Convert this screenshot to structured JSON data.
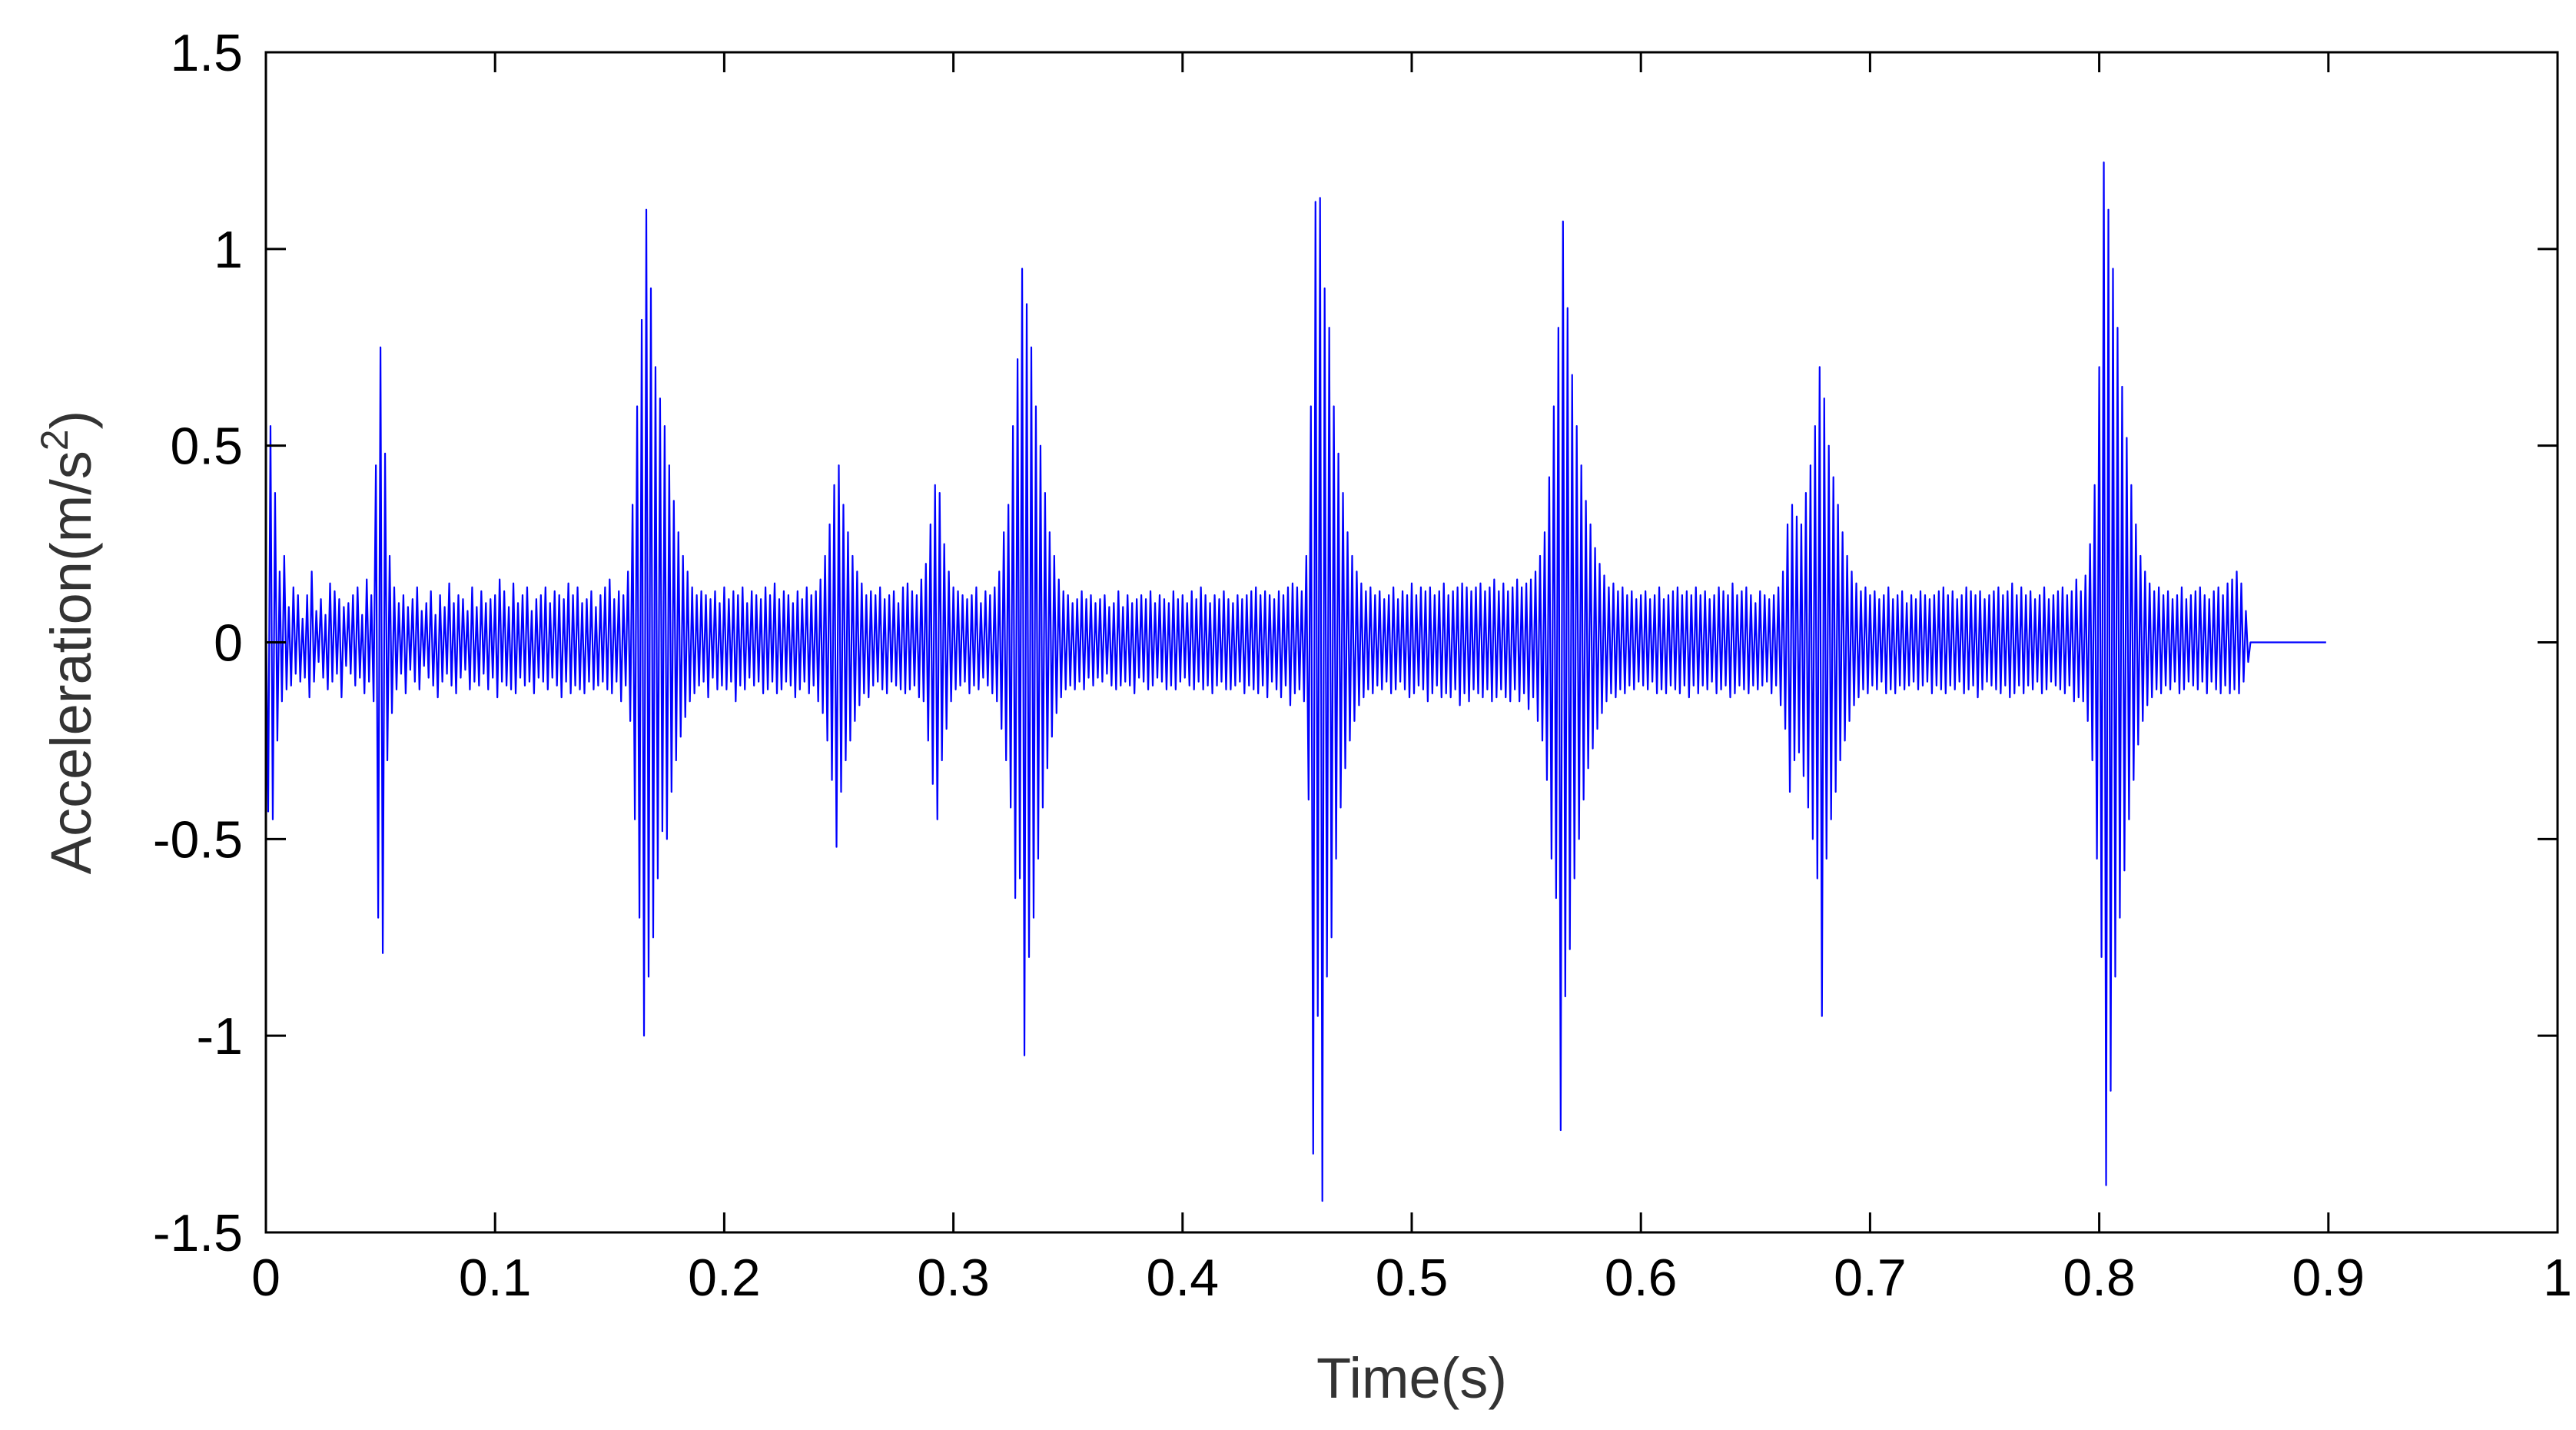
{
  "colors": {
    "series_line": "#0000ff",
    "axes": "#000000",
    "axis_title": "#333333",
    "background": "#ffffff"
  },
  "chart_data": {
    "type": "line",
    "xlabel": "Time(s)",
    "ylabel": {
      "base": "Acceleration(m/s",
      "superscript": "2",
      "close": ")"
    },
    "xlim": [
      0,
      1
    ],
    "ylim": [
      -1.5,
      1.5
    ],
    "xticks": [
      "0",
      "0.1",
      "0.2",
      "0.3",
      "0.4",
      "0.5",
      "0.6",
      "0.7",
      "0.8",
      "0.9",
      "1"
    ],
    "yticks": [
      "-1.5",
      "-1",
      "-0.5",
      "0",
      "0.5",
      "1",
      "1.5"
    ],
    "grid": false,
    "legend": "none",
    "series": [
      {
        "sample_interval_s": 0.001,
        "start_time_s": 0.0,
        "values": [
          0.1,
          -0.43,
          0.55,
          -0.45,
          0.38,
          -0.25,
          0.18,
          -0.15,
          0.22,
          -0.12,
          0.09,
          -0.11,
          0.14,
          -0.08,
          0.12,
          -0.1,
          0.06,
          -0.09,
          0.12,
          -0.14,
          0.18,
          -0.1,
          0.08,
          -0.05,
          0.11,
          -0.09,
          0.07,
          -0.12,
          0.15,
          -0.1,
          0.13,
          -0.08,
          0.11,
          -0.14,
          0.09,
          -0.06,
          0.1,
          -0.08,
          0.12,
          -0.11,
          0.14,
          -0.09,
          0.07,
          -0.13,
          0.16,
          -0.1,
          0.12,
          -0.15,
          0.45,
          -0.7,
          0.75,
          -0.79,
          0.48,
          -0.3,
          0.22,
          -0.18,
          0.14,
          -0.12,
          0.1,
          -0.08,
          0.12,
          -0.13,
          0.09,
          -0.07,
          0.11,
          -0.1,
          0.14,
          -0.12,
          0.08,
          -0.06,
          0.1,
          -0.09,
          0.13,
          -0.11,
          0.07,
          -0.14,
          0.12,
          -0.1,
          0.09,
          -0.08,
          0.15,
          -0.11,
          0.1,
          -0.13,
          0.12,
          -0.09,
          0.11,
          -0.07,
          0.08,
          -0.12,
          0.14,
          -0.1,
          0.09,
          -0.11,
          0.13,
          -0.08,
          0.1,
          -0.12,
          0.11,
          -0.09,
          0.12,
          -0.14,
          0.16,
          -0.1,
          0.13,
          -0.11,
          0.09,
          -0.12,
          0.15,
          -0.13,
          0.1,
          -0.09,
          0.12,
          -0.11,
          0.14,
          -0.1,
          0.08,
          -0.13,
          0.11,
          -0.09,
          0.12,
          -0.1,
          0.14,
          -0.12,
          0.1,
          -0.09,
          0.13,
          -0.11,
          0.12,
          -0.14,
          0.11,
          -0.1,
          0.15,
          -0.13,
          0.12,
          -0.11,
          0.14,
          -0.12,
          0.1,
          -0.13,
          0.11,
          -0.1,
          0.13,
          -0.12,
          0.09,
          -0.11,
          0.12,
          -0.1,
          0.14,
          -0.12,
          0.16,
          -0.13,
          0.11,
          -0.1,
          0.13,
          -0.15,
          0.12,
          -0.11,
          0.18,
          -0.2,
          0.35,
          -0.45,
          0.6,
          -0.7,
          0.82,
          -1.0,
          1.1,
          -0.85,
          0.9,
          -0.75,
          0.7,
          -0.6,
          0.62,
          -0.48,
          0.55,
          -0.5,
          0.45,
          -0.38,
          0.36,
          -0.3,
          0.28,
          -0.24,
          0.22,
          -0.19,
          0.18,
          -0.15,
          0.14,
          -0.13,
          0.12,
          -0.11,
          0.13,
          -0.1,
          0.12,
          -0.14,
          0.11,
          -0.09,
          0.13,
          -0.12,
          0.1,
          -0.11,
          0.14,
          -0.12,
          0.11,
          -0.1,
          0.13,
          -0.15,
          0.12,
          -0.11,
          0.14,
          -0.12,
          0.1,
          -0.09,
          0.13,
          -0.11,
          0.12,
          -0.1,
          0.11,
          -0.13,
          0.14,
          -0.12,
          0.12,
          -0.1,
          0.15,
          -0.13,
          0.11,
          -0.12,
          0.13,
          -0.1,
          0.12,
          -0.11,
          0.1,
          -0.14,
          0.13,
          -0.12,
          0.11,
          -0.1,
          0.14,
          -0.13,
          0.12,
          -0.11,
          0.13,
          -0.15,
          0.16,
          -0.18,
          0.22,
          -0.25,
          0.3,
          -0.35,
          0.4,
          -0.52,
          0.45,
          -0.38,
          0.35,
          -0.3,
          0.28,
          -0.25,
          0.22,
          -0.2,
          0.18,
          -0.16,
          0.15,
          -0.13,
          0.12,
          -0.14,
          0.13,
          -0.11,
          0.12,
          -0.1,
          0.14,
          -0.12,
          0.11,
          -0.13,
          0.12,
          -0.1,
          0.13,
          -0.11,
          0.1,
          -0.12,
          0.14,
          -0.13,
          0.15,
          -0.12,
          0.13,
          -0.11,
          0.12,
          -0.14,
          0.16,
          -0.15,
          0.2,
          -0.25,
          0.3,
          -0.36,
          0.4,
          -0.45,
          0.38,
          -0.3,
          0.25,
          -0.22,
          0.18,
          -0.15,
          0.14,
          -0.12,
          0.13,
          -0.11,
          0.12,
          -0.1,
          0.11,
          -0.13,
          0.12,
          -0.11,
          0.14,
          -0.12,
          0.1,
          -0.09,
          0.13,
          -0.11,
          0.12,
          -0.13,
          0.14,
          -0.15,
          0.18,
          -0.22,
          0.28,
          -0.3,
          0.35,
          -0.42,
          0.55,
          -0.65,
          0.72,
          -0.6,
          0.95,
          -1.05,
          0.86,
          -0.8,
          0.75,
          -0.7,
          0.6,
          -0.55,
          0.5,
          -0.42,
          0.38,
          -0.32,
          0.28,
          -0.24,
          0.22,
          -0.18,
          0.16,
          -0.14,
          0.13,
          -0.12,
          0.12,
          -0.11,
          0.1,
          -0.12,
          0.11,
          -0.1,
          0.13,
          -0.12,
          0.11,
          -0.09,
          0.12,
          -0.11,
          0.1,
          -0.09,
          0.11,
          -0.1,
          0.12,
          -0.08,
          0.09,
          -0.11,
          0.1,
          -0.12,
          0.13,
          -0.11,
          0.09,
          -0.1,
          0.12,
          -0.11,
          0.1,
          -0.13,
          0.11,
          -0.09,
          0.12,
          -0.1,
          0.11,
          -0.12,
          0.13,
          -0.11,
          0.1,
          -0.09,
          0.12,
          -0.1,
          0.11,
          -0.12,
          0.1,
          -0.11,
          0.13,
          -0.12,
          0.11,
          -0.1,
          0.12,
          -0.09,
          0.1,
          -0.11,
          0.13,
          -0.12,
          0.11,
          -0.1,
          0.14,
          -0.12,
          0.12,
          -0.11,
          0.1,
          -0.13,
          0.12,
          -0.11,
          0.11,
          -0.1,
          0.13,
          -0.12,
          0.11,
          -0.12,
          0.1,
          -0.11,
          0.12,
          -0.1,
          0.11,
          -0.13,
          0.12,
          -0.11,
          0.13,
          -0.12,
          0.14,
          -0.13,
          0.12,
          -0.11,
          0.13,
          -0.14,
          0.12,
          -0.1,
          0.11,
          -0.12,
          0.13,
          -0.14,
          0.12,
          -0.11,
          0.14,
          -0.16,
          0.15,
          -0.13,
          0.14,
          -0.12,
          0.13,
          -0.15,
          0.22,
          -0.4,
          0.6,
          -1.3,
          1.12,
          -0.95,
          1.13,
          -1.42,
          0.9,
          -0.85,
          0.8,
          -0.75,
          0.6,
          -0.55,
          0.48,
          -0.42,
          0.38,
          -0.32,
          0.28,
          -0.25,
          0.22,
          -0.2,
          0.18,
          -0.16,
          0.15,
          -0.14,
          0.13,
          -0.12,
          0.14,
          -0.13,
          0.12,
          -0.11,
          0.13,
          -0.12,
          0.11,
          -0.1,
          0.12,
          -0.13,
          0.14,
          -0.12,
          0.11,
          -0.1,
          0.13,
          -0.12,
          0.12,
          -0.14,
          0.15,
          -0.13,
          0.12,
          -0.11,
          0.14,
          -0.12,
          0.13,
          -0.15,
          0.14,
          -0.13,
          0.12,
          -0.11,
          0.13,
          -0.14,
          0.15,
          -0.13,
          0.12,
          -0.14,
          0.13,
          -0.12,
          0.14,
          -0.16,
          0.15,
          -0.13,
          0.14,
          -0.15,
          0.13,
          -0.12,
          0.14,
          -0.13,
          0.15,
          -0.14,
          0.13,
          -0.12,
          0.14,
          -0.15,
          0.16,
          -0.14,
          0.13,
          -0.12,
          0.15,
          -0.14,
          0.13,
          -0.15,
          0.14,
          -0.12,
          0.16,
          -0.15,
          0.14,
          -0.13,
          0.15,
          -0.17,
          0.16,
          -0.14,
          0.18,
          -0.2,
          0.22,
          -0.25,
          0.28,
          -0.35,
          0.42,
          -0.55,
          0.6,
          -0.65,
          0.8,
          -1.24,
          1.07,
          -0.9,
          0.85,
          -0.78,
          0.68,
          -0.6,
          0.55,
          -0.5,
          0.45,
          -0.4,
          0.36,
          -0.32,
          0.3,
          -0.27,
          0.24,
          -0.22,
          0.2,
          -0.18,
          0.17,
          -0.15,
          0.14,
          -0.13,
          0.15,
          -0.14,
          0.13,
          -0.12,
          0.14,
          -0.13,
          0.12,
          -0.11,
          0.13,
          -0.12,
          0.11,
          -0.1,
          0.12,
          -0.11,
          0.13,
          -0.12,
          0.11,
          -0.1,
          0.12,
          -0.13,
          0.14,
          -0.12,
          0.11,
          -0.13,
          0.12,
          -0.11,
          0.13,
          -0.12,
          0.14,
          -0.13,
          0.12,
          -0.11,
          0.13,
          -0.14,
          0.12,
          -0.11,
          0.14,
          -0.13,
          0.12,
          -0.11,
          0.13,
          -0.12,
          0.11,
          -0.1,
          0.12,
          -0.13,
          0.14,
          -0.12,
          0.13,
          -0.11,
          0.12,
          -0.14,
          0.15,
          -0.13,
          0.12,
          -0.11,
          0.13,
          -0.12,
          0.14,
          -0.13,
          0.12,
          -0.11,
          0.1,
          -0.12,
          0.13,
          -0.11,
          0.12,
          -0.1,
          0.11,
          -0.13,
          0.12,
          -0.11,
          0.14,
          -0.16,
          0.18,
          -0.22,
          0.3,
          -0.38,
          0.35,
          -0.3,
          0.32,
          -0.28,
          0.3,
          -0.34,
          0.38,
          -0.42,
          0.45,
          -0.5,
          0.55,
          -0.6,
          0.7,
          -0.95,
          0.62,
          -0.55,
          0.5,
          -0.45,
          0.42,
          -0.38,
          0.35,
          -0.3,
          0.28,
          -0.25,
          0.22,
          -0.2,
          0.18,
          -0.16,
          0.15,
          -0.14,
          0.13,
          -0.12,
          0.14,
          -0.13,
          0.12,
          -0.11,
          0.13,
          -0.12,
          0.11,
          -0.1,
          0.12,
          -0.13,
          0.14,
          -0.12,
          0.11,
          -0.13,
          0.12,
          -0.11,
          0.13,
          -0.12,
          0.1,
          -0.11,
          0.12,
          -0.1,
          0.11,
          -0.12,
          0.13,
          -0.11,
          0.12,
          -0.1,
          0.11,
          -0.13,
          0.12,
          -0.11,
          0.13,
          -0.12,
          0.14,
          -0.13,
          0.12,
          -0.11,
          0.13,
          -0.12,
          0.11,
          -0.1,
          0.12,
          -0.13,
          0.14,
          -0.12,
          0.13,
          -0.11,
          0.12,
          -0.14,
          0.13,
          -0.12,
          0.11,
          -0.1,
          0.12,
          -0.11,
          0.13,
          -0.12,
          0.14,
          -0.13,
          0.12,
          -0.11,
          0.13,
          -0.14,
          0.15,
          -0.13,
          0.12,
          -0.11,
          0.14,
          -0.13,
          0.12,
          -0.11,
          0.13,
          -0.12,
          0.11,
          -0.1,
          0.12,
          -0.13,
          0.14,
          -0.12,
          0.11,
          -0.1,
          0.12,
          -0.11,
          0.13,
          -0.12,
          0.14,
          -0.13,
          0.12,
          -0.11,
          0.13,
          -0.15,
          0.16,
          -0.14,
          0.13,
          -0.15,
          0.17,
          -0.2,
          0.25,
          -0.3,
          0.4,
          -0.55,
          0.7,
          -0.8,
          1.22,
          -1.38,
          1.1,
          -1.14,
          0.95,
          -0.85,
          0.8,
          -0.7,
          0.65,
          -0.58,
          0.52,
          -0.45,
          0.4,
          -0.35,
          0.3,
          -0.26,
          0.22,
          -0.2,
          0.18,
          -0.16,
          0.15,
          -0.14,
          0.13,
          -0.12,
          0.14,
          -0.13,
          0.12,
          -0.11,
          0.13,
          -0.12,
          0.11,
          -0.1,
          0.12,
          -0.13,
          0.14,
          -0.12,
          0.11,
          -0.1,
          0.12,
          -0.11,
          0.13,
          -0.12,
          0.14,
          -0.1,
          0.12,
          -0.13,
          0.11,
          -0.1,
          0.13,
          -0.12,
          0.14,
          -0.13,
          0.12,
          -0.11,
          0.15,
          -0.13,
          0.16,
          -0.12,
          0.18,
          -0.13,
          0.15,
          -0.1,
          0.08,
          -0.05,
          0.0,
          0.0,
          0.0,
          0.0,
          0.0,
          0.0,
          0.0,
          0.0,
          0.0,
          0.0,
          0.0,
          0.0,
          0.0,
          0.0,
          0.0,
          0.0,
          0.0,
          0.0,
          0.0,
          0.0,
          0.0,
          0.0,
          0.0,
          0.0,
          0.0,
          0.0,
          0.0,
          0.0,
          0.0,
          0.0,
          0.0,
          0.0,
          0.0,
          0.0
        ]
      }
    ]
  }
}
